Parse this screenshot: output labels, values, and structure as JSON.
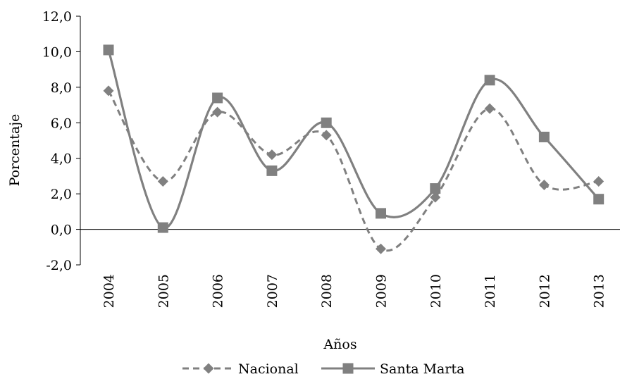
{
  "chart_data": {
    "type": "line",
    "categories": [
      "2004",
      "2005",
      "2006",
      "2007",
      "2008",
      "2009",
      "2010",
      "2011",
      "2012",
      "2013"
    ],
    "series": [
      {
        "name": "Nacional",
        "values": [
          7.8,
          2.7,
          6.6,
          4.2,
          5.3,
          -1.1,
          1.8,
          6.8,
          2.5,
          2.7
        ],
        "line_style": "dashed",
        "marker": "diamond",
        "color": "#808080"
      },
      {
        "name": "Santa Marta",
        "values": [
          10.1,
          0.1,
          7.4,
          3.3,
          6.0,
          0.9,
          2.3,
          8.4,
          5.2,
          1.7
        ],
        "line_style": "solid",
        "marker": "square",
        "color": "#808080"
      }
    ],
    "y_ticks": [
      "-2,0",
      "0,0",
      "2,0",
      "4,0",
      "6,0",
      "8,0",
      "10,0",
      "12,0"
    ],
    "ylim": [
      -2,
      12
    ],
    "xlabel": "Años",
    "ylabel": "Porcentaje",
    "grid": false,
    "legend_position": "bottom",
    "smooth": true
  }
}
